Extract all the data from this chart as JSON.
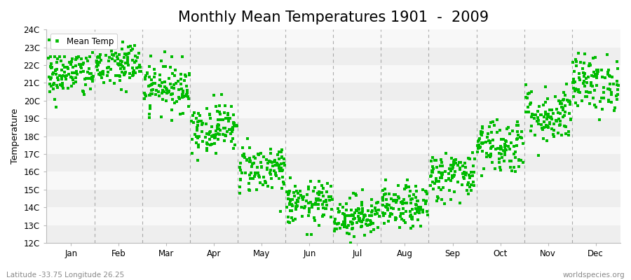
{
  "title": "Monthly Mean Temperatures 1901  -  2009",
  "ylabel": "Temperature",
  "bottom_left": "Latitude -33.75 Longitude 26.25",
  "bottom_right": "worldspecies.org",
  "legend_label": "Mean Temp",
  "ylim": [
    12,
    24
  ],
  "ytick_labels": [
    "12C",
    "13C",
    "14C",
    "15C",
    "16C",
    "17C",
    "18C",
    "19C",
    "20C",
    "21C",
    "22C",
    "23C",
    "24C"
  ],
  "ytick_values": [
    12,
    13,
    14,
    15,
    16,
    17,
    18,
    19,
    20,
    21,
    22,
    23,
    24
  ],
  "months": [
    "Jan",
    "Feb",
    "Mar",
    "Apr",
    "May",
    "Jun",
    "Jul",
    "Aug",
    "Sep",
    "Oct",
    "Nov",
    "Dec"
  ],
  "month_means": [
    21.5,
    22.0,
    20.8,
    18.5,
    16.2,
    14.2,
    13.5,
    14.0,
    15.8,
    17.5,
    19.2,
    21.0
  ],
  "month_std": [
    0.7,
    0.7,
    0.7,
    0.7,
    0.7,
    0.6,
    0.6,
    0.6,
    0.7,
    0.8,
    0.8,
    0.8
  ],
  "n_years": 109,
  "marker_color": "#00BB00",
  "marker": "s",
  "marker_size": 2.5,
  "band_colors": [
    "#eeeeee",
    "#f8f8f8"
  ],
  "grid_color": "#777777",
  "title_fontsize": 15,
  "label_fontsize": 9,
  "tick_fontsize": 8.5,
  "seed": 42
}
